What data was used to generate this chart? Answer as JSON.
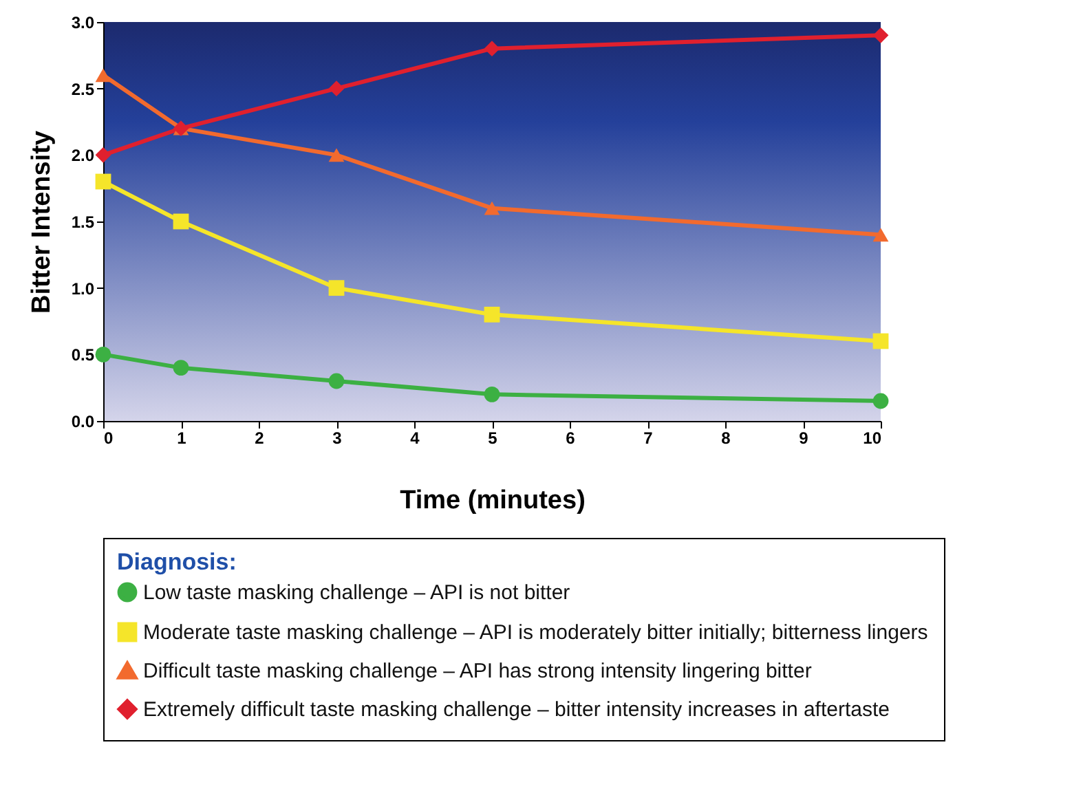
{
  "chart_data": {
    "type": "line",
    "xlabel": "Time (minutes)",
    "ylabel": "Bitter Intensity",
    "legend_title": "Diagnosis:",
    "x": [
      0,
      1,
      3,
      5,
      10
    ],
    "series": [
      {
        "name": "Low taste masking challenge – API is not bitter",
        "color": "#3cb043",
        "marker": "circle",
        "values": [
          0.5,
          0.4,
          0.3,
          0.2,
          0.15
        ]
      },
      {
        "name": "Moderate taste masking challenge – API is moderately bitter initially; bitterness lingers",
        "color": "#f5e52a",
        "marker": "square",
        "values": [
          1.8,
          1.5,
          1.0,
          0.8,
          0.6
        ]
      },
      {
        "name": "Difficult taste masking challenge – API has strong intensity lingering bitter",
        "color": "#f26a2e",
        "marker": "triangle",
        "values": [
          2.6,
          2.2,
          2.0,
          1.6,
          1.4
        ]
      },
      {
        "name": "Extremely difficult taste masking challenge – bitter intensity increases in aftertaste",
        "color": "#e0202e",
        "marker": "diamond",
        "values": [
          2.0,
          2.2,
          2.5,
          2.8,
          2.9
        ]
      }
    ],
    "xlim": [
      0,
      10
    ],
    "xticks": [
      0,
      1,
      2,
      3,
      4,
      5,
      6,
      7,
      8,
      9,
      10
    ],
    "ylim": [
      0,
      3
    ],
    "yticks": [
      {
        "value": 0,
        "label": "0.0"
      },
      {
        "value": 0.5,
        "label": "0.5"
      },
      {
        "value": 1,
        "label": "1.0"
      },
      {
        "value": 1.5,
        "label": "1.5"
      },
      {
        "value": 2,
        "label": "2.0"
      },
      {
        "value": 2.5,
        "label": "2.5"
      },
      {
        "value": 3,
        "label": "3.0"
      }
    ],
    "grid": false,
    "legend": "bottom",
    "line_style": "solid"
  }
}
